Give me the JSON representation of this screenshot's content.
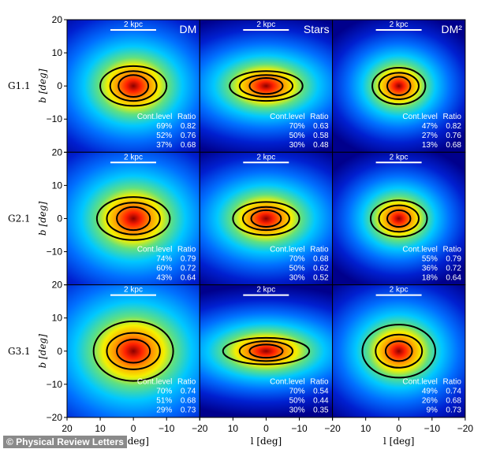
{
  "chart_data": {
    "type": "heatmap",
    "xlabel": "l [deg]",
    "ylabel": "b [deg]",
    "xlim": [
      20,
      -20
    ],
    "ylim": [
      -20,
      20
    ],
    "xticks": [
      "20",
      "10",
      "0",
      "−10",
      "−20"
    ],
    "yticks": [
      "20",
      "10",
      "0",
      "−10",
      "−20"
    ],
    "columns": [
      "DM",
      "Stars",
      "DM²"
    ],
    "rows": [
      "G1.1",
      "G2.1",
      "G3.1"
    ],
    "scale_bar": "2 kpc",
    "table_headers": [
      "Cont.level",
      "Ratio"
    ],
    "colormap": [
      "#8b0000",
      "#ff2000",
      "#ff9a00",
      "#f4f000",
      "#60e080",
      "#00c8ff",
      "#0070ff",
      "#0020d0",
      "#00008c"
    ],
    "panels": [
      [
        {
          "levels": [
            "69%",
            "52%",
            "37%"
          ],
          "ratios": [
            "0.82",
            "0.76",
            "0.68"
          ],
          "contours_deg": [
            [
              10,
              6
            ],
            [
              7,
              4.5
            ],
            [
              4.5,
              3.3
            ]
          ],
          "spread": [
            16,
            13
          ]
        },
        {
          "levels": [
            "70%",
            "50%",
            "30%"
          ],
          "ratios": [
            "0.63",
            "0.58",
            "0.48"
          ],
          "contours_deg": [
            [
              11,
              4.5
            ],
            [
              8,
              3.3
            ],
            [
              5,
              2.4
            ]
          ],
          "spread": [
            17,
            10
          ]
        },
        {
          "levels": [
            "47%",
            "27%",
            "13%"
          ],
          "ratios": [
            "0.82",
            "0.76",
            "0.68"
          ],
          "contours_deg": [
            [
              8,
              5.5
            ],
            [
              6,
              4
            ],
            [
              3.5,
              2.8
            ]
          ],
          "spread": [
            12,
            10
          ]
        }
      ],
      [
        {
          "levels": [
            "74%",
            "60%",
            "43%"
          ],
          "ratios": [
            "0.79",
            "0.72",
            "0.64"
          ],
          "contours_deg": [
            [
              11,
              6.5
            ],
            [
              8,
              4.8
            ],
            [
              5,
              3.5
            ]
          ],
          "spread": [
            17,
            14
          ]
        },
        {
          "levels": [
            "70%",
            "50%",
            "30%"
          ],
          "ratios": [
            "0.68",
            "0.62",
            "0.52"
          ],
          "contours_deg": [
            [
              10,
              5
            ],
            [
              7,
              3.5
            ],
            [
              4.5,
              2.5
            ]
          ],
          "spread": [
            16,
            11
          ]
        },
        {
          "levels": [
            "55%",
            "36%",
            "18%"
          ],
          "ratios": [
            "0.79",
            "0.72",
            "0.64"
          ],
          "contours_deg": [
            [
              8.5,
              5.5
            ],
            [
              6,
              4
            ],
            [
              3.5,
              2.5
            ]
          ],
          "spread": [
            12,
            10
          ]
        }
      ],
      [
        {
          "levels": [
            "70%",
            "51%",
            "29%"
          ],
          "ratios": [
            "0.74",
            "0.68",
            "0.73"
          ],
          "contours_deg": [
            [
              12,
              9
            ],
            [
              8,
              5.5
            ],
            [
              5,
              3.5
            ]
          ],
          "spread": [
            19,
            16
          ]
        },
        {
          "levels": [
            "70%",
            "50%",
            "30%"
          ],
          "ratios": [
            "0.54",
            "0.44",
            "0.35"
          ],
          "contours_deg": [
            [
              13,
              4
            ],
            [
              8,
              3
            ],
            [
              5,
              2
            ]
          ],
          "spread": [
            19,
            9
          ]
        },
        {
          "levels": [
            "49%",
            "26%",
            "9%"
          ],
          "ratios": [
            "0.74",
            "0.68",
            "0.73"
          ],
          "contours_deg": [
            [
              11,
              8
            ],
            [
              7,
              5
            ],
            [
              4,
              3
            ]
          ],
          "spread": [
            14,
            12
          ]
        }
      ]
    ]
  },
  "credit": "© Physical Review Letters"
}
